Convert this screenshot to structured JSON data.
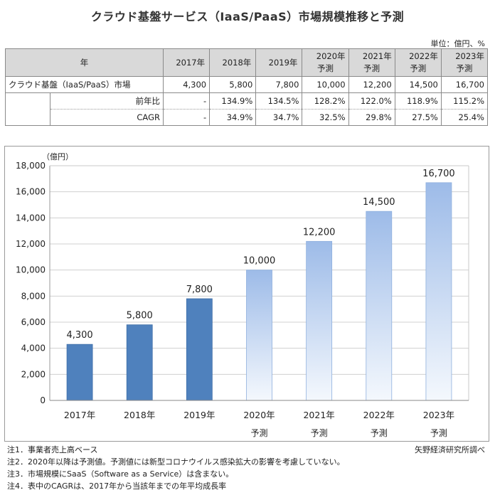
{
  "title": "クラウド基盤サービス（IaaS/PaaS）市場規模推移と予測",
  "unit_label": "単位：億円、%",
  "table": {
    "header_label": "年",
    "years": [
      {
        "year": "2017年",
        "sub": ""
      },
      {
        "year": "2018年",
        "sub": ""
      },
      {
        "year": "2019年",
        "sub": ""
      },
      {
        "year": "2020年",
        "sub": "予測"
      },
      {
        "year": "2021年",
        "sub": "予測"
      },
      {
        "year": "2022年",
        "sub": "予測"
      },
      {
        "year": "2023年",
        "sub": "予測"
      }
    ],
    "rows": [
      {
        "label": "クラウド基盤（IaaS/PaaS）市場",
        "values": [
          "4,300",
          "5,800",
          "7,800",
          "10,000",
          "12,200",
          "14,500",
          "16,700"
        ]
      },
      {
        "label": "前年比",
        "values": [
          "-",
          "134.9%",
          "134.5%",
          "128.2%",
          "122.0%",
          "118.9%",
          "115.2%"
        ]
      },
      {
        "label": "CAGR",
        "values": [
          "-",
          "34.9%",
          "34.7%",
          "32.5%",
          "29.8%",
          "27.5%",
          "25.4%"
        ]
      }
    ]
  },
  "chart_data": {
    "type": "bar",
    "categories": [
      "2017年",
      "2018年",
      "2019年",
      "2020年",
      "2021年",
      "2022年",
      "2023年"
    ],
    "category_sublabels": [
      "",
      "",
      "",
      "予測",
      "予測",
      "予測",
      "予測"
    ],
    "values": [
      4300,
      5800,
      7800,
      10000,
      12200,
      14500,
      16700
    ],
    "value_labels": [
      "4,300",
      "5,800",
      "7,800",
      "10,000",
      "12,200",
      "14,500",
      "16,700"
    ],
    "forecast": [
      false,
      false,
      false,
      true,
      true,
      true,
      true
    ],
    "ylabel": "（億円）",
    "ylim": [
      0,
      18000
    ],
    "yticks": [
      0,
      2000,
      4000,
      6000,
      8000,
      10000,
      12000,
      14000,
      16000,
      18000
    ],
    "ytick_labels": [
      "0",
      "2,000",
      "4,000",
      "6,000",
      "8,000",
      "10,000",
      "12,000",
      "14,000",
      "16,000",
      "18,000"
    ],
    "grid": true,
    "colors": {
      "actual": "#4f81bd",
      "forecast_top": "#9dbbe8",
      "forecast_bottom": "#f4f8fd",
      "grid": "#d0d0d0"
    }
  },
  "notes": [
    "注1．事業者売上高ベース",
    "注2．2020年以降は予測値。予測値には新型コロナウイルス感染拡大の影響を考慮していない。",
    "注3．市場規模にSaaS（Software as a Service）は含まない。",
    "注4．表中のCAGRは、2017年から当該年までの年平均成長率"
  ],
  "source": "矢野経済研究所調べ"
}
